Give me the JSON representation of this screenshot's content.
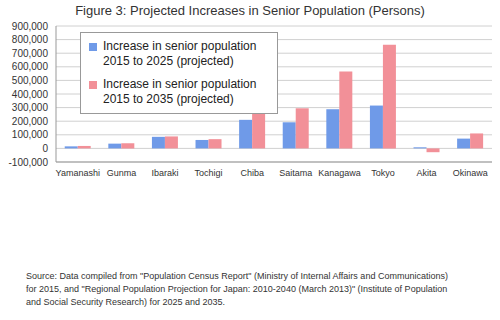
{
  "chart_data": {
    "type": "bar",
    "title": "Figure 3: Projected Increases in Senior Population (Persons)",
    "categories": [
      "Yamanashi",
      "Gunma",
      "Ibaraki",
      "Tochigi",
      "Chiba",
      "Saitama",
      "Kanagawa",
      "Tokyo",
      "Akita",
      "Okinawa"
    ],
    "series": [
      {
        "name": "Increase in senior population 2015 to 2025 (projected)",
        "color": "#6f9ae8",
        "values": [
          15000,
          35000,
          85000,
          62000,
          210000,
          192000,
          288000,
          315000,
          8000,
          72000
        ]
      },
      {
        "name": "Increase in senior population 2015 to 2035 (projected)",
        "color": "#f29098",
        "values": [
          18000,
          38000,
          88000,
          68000,
          283000,
          295000,
          565000,
          762000,
          -28000,
          110000
        ]
      }
    ],
    "ylim": [
      -100000,
      900000
    ],
    "yticks": [
      {
        "value": -100000,
        "label": "-100,000"
      },
      0,
      {
        "value": 100000,
        "label": "100,000"
      },
      {
        "value": 200000,
        "label": "200,000"
      },
      {
        "value": 300000,
        "label": "300,000"
      },
      {
        "value": 400000,
        "label": "400,000"
      },
      {
        "value": 500000,
        "label": "500,000"
      },
      {
        "value": 600000,
        "label": "600,000"
      },
      {
        "value": 700000,
        "label": "700,000"
      },
      {
        "value": 800000,
        "label": "800,000"
      },
      {
        "value": 900000,
        "label": "900,000"
      }
    ],
    "grid": true,
    "legend": "upper left",
    "annotations": [
      "Source: Data compiled from \"Population Census Report\" (Ministry of Internal Affairs and Communications)",
      "for 2015, and \"Regional Population Projection for Japan: 2010-2040 (March 2013)\" (Institute of Population",
      "and Social Security Research) for 2025 and 2035."
    ]
  }
}
